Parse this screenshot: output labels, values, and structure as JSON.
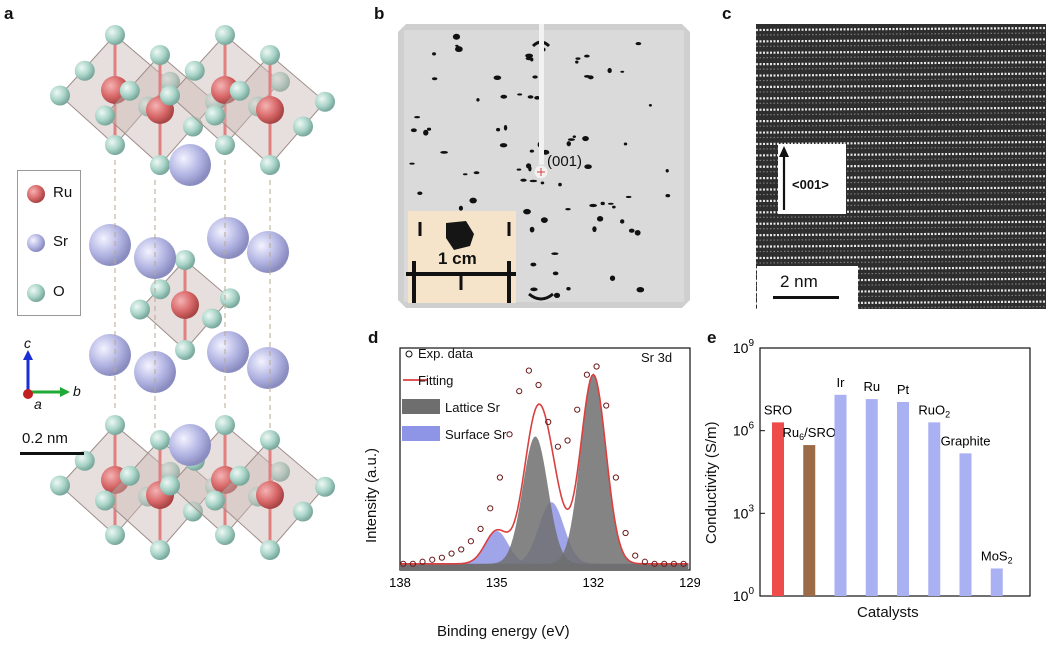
{
  "panels": {
    "a": {
      "letter": "a",
      "legend": [
        {
          "label": "Ru",
          "color": "#d9696a"
        },
        {
          "label": "Sr",
          "color": "#b3b5e3"
        },
        {
          "label": "O",
          "color": "#a9d4c8"
        }
      ],
      "axes": {
        "c": "c",
        "b": "b",
        "a": "a"
      },
      "scalebar": "0.2 nm"
    },
    "b": {
      "letter": "b",
      "spot_label": "(001)",
      "inset_scalebar": "1 cm"
    },
    "c": {
      "letter": "c",
      "direction_label": "<001>",
      "scalebar": "2 nm"
    },
    "d": {
      "letter": "d"
    },
    "e": {
      "letter": "e"
    }
  },
  "chart_data": [
    {
      "type": "line",
      "panel": "d",
      "annotation": "Sr 3d",
      "xlabel": "Binding energy (eV)",
      "ylabel": "Intensity (a.u.)",
      "xlim": [
        138,
        129
      ],
      "x_reversed": true,
      "xticks": [
        "138",
        "135",
        "132",
        "129"
      ],
      "legend": [
        "Exp. data",
        "Fitting",
        "Lattice Sr",
        "Surface Sr"
      ],
      "series": [
        {
          "name": "Exp. data",
          "kind": "scatter",
          "x": [
            137.9,
            137.6,
            137.3,
            137.0,
            136.7,
            136.4,
            136.1,
            135.8,
            135.5,
            135.2,
            134.9,
            134.6,
            134.3,
            134.0,
            133.7,
            133.4,
            133.1,
            132.8,
            132.5,
            132.2,
            131.9,
            131.6,
            131.3,
            131.0,
            130.7,
            130.4,
            130.1,
            129.8,
            129.5,
            129.2
          ],
          "y": [
            0.03,
            0.03,
            0.04,
            0.05,
            0.06,
            0.08,
            0.1,
            0.14,
            0.2,
            0.3,
            0.45,
            0.66,
            0.87,
            0.97,
            0.9,
            0.72,
            0.6,
            0.63,
            0.78,
            0.95,
            0.99,
            0.8,
            0.45,
            0.18,
            0.07,
            0.04,
            0.03,
            0.03,
            0.03,
            0.03
          ]
        },
        {
          "name": "Fitting",
          "kind": "line",
          "color": "#d94040"
        },
        {
          "name": "Lattice Sr",
          "kind": "area",
          "color": "#6e6e6e",
          "peaks": [
            {
              "center": 133.8,
              "height": 0.62,
              "width": 0.55
            },
            {
              "center": 132.0,
              "height": 0.92,
              "width": 0.55
            }
          ]
        },
        {
          "name": "Surface Sr",
          "kind": "area",
          "color": "#8f95e6",
          "peaks": [
            {
              "center": 135.0,
              "height": 0.16,
              "width": 0.5
            },
            {
              "center": 133.3,
              "height": 0.3,
              "width": 0.55
            }
          ]
        }
      ]
    },
    {
      "type": "bar",
      "panel": "e",
      "xlabel": "Catalysts",
      "ylabel": "Conductivity (S/m)",
      "yscale": "log",
      "ylim": [
        1,
        1000000000
      ],
      "yticks": [
        "10^0",
        "10^3",
        "10^6",
        "10^9"
      ],
      "categories": [
        "SRO",
        "Ru6/SRO",
        "Ir",
        "Ru",
        "Pt",
        "RuO2",
        "Graphite",
        "MoS2"
      ],
      "category_labels": [
        {
          "main": "SRO",
          "sub": ""
        },
        {
          "main": "Ru",
          "sub": "6",
          "rest": "/SRO"
        },
        {
          "main": "Ir",
          "sub": ""
        },
        {
          "main": "Ru",
          "sub": ""
        },
        {
          "main": "Pt",
          "sub": ""
        },
        {
          "main": "RuO",
          "sub": "2"
        },
        {
          "main": "Graphite",
          "sub": ""
        },
        {
          "main": "MoS",
          "sub": "2"
        }
      ],
      "values": [
        2000000,
        300000,
        20000000,
        14000000,
        11000000,
        2000000,
        150000,
        10
      ],
      "colors": [
        "#ee4b4b",
        "#9b6a46",
        "#aab1f2",
        "#aab1f2",
        "#aab1f2",
        "#aab1f2",
        "#aab1f2",
        "#aab1f2"
      ]
    }
  ]
}
